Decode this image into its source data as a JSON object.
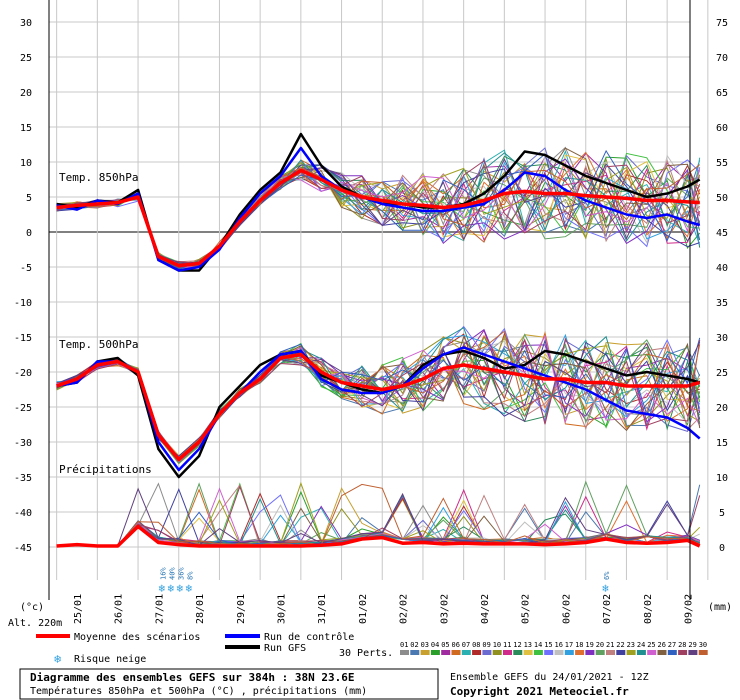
{
  "chart_data": {
    "type": "line",
    "title": "Diagramme des ensembles GEFS sur 384h : 38N 23.6E",
    "subtitle": "Températures 850hPa et 500hPa (°C) , précipitations (mm)",
    "left_axis": {
      "ticks": [
        30,
        25,
        20,
        15,
        10,
        5,
        0,
        -5,
        -10,
        -15,
        -20,
        -25,
        -30,
        -35,
        -40,
        -45
      ],
      "unit": "(°c)"
    },
    "right_axis": {
      "ticks": [
        75,
        70,
        65,
        60,
        55,
        50,
        45,
        40,
        35,
        30,
        25,
        20,
        15,
        10,
        5,
        0
      ],
      "unit": "(mm)"
    },
    "x_labels": [
      "25/01",
      "26/01",
      "27/01",
      "28/01",
      "29/01",
      "30/01",
      "31/01",
      "01/02",
      "02/02",
      "03/02",
      "04/02",
      "05/02",
      "06/02",
      "07/02",
      "08/02",
      "09/02"
    ],
    "panel_labels": {
      "t850": "Temp. 850hPa",
      "t500": "Temp. 500hPa",
      "precip": "Précipitations"
    },
    "altitude": "Alt. 220m",
    "legend": {
      "mean": "Moyenne des scénarios",
      "control": "Run de contrôle",
      "gfs": "Run GFS",
      "snow": "Risque neige",
      "perts": "30 Perts.",
      "pert_numbers": [
        "01",
        "02",
        "03",
        "04",
        "05",
        "06",
        "07",
        "08",
        "09",
        "10",
        "11",
        "12",
        "13",
        "14",
        "15",
        "16",
        "17",
        "18",
        "19",
        "20",
        "21",
        "22",
        "23",
        "24",
        "25",
        "26",
        "27",
        "28",
        "29",
        "30"
      ],
      "pert_colors": [
        "#8c8c8c",
        "#4a78b0",
        "#c8a030",
        "#2aa02a",
        "#a02aa0",
        "#d06a20",
        "#2ab0b0",
        "#b02a2a",
        "#6a6ad0",
        "#909020",
        "#d02a8a",
        "#2a8a5a",
        "#e0c040",
        "#40c040",
        "#7070ff",
        "#c0c0c0",
        "#30a0e0",
        "#e07030",
        "#8030c0",
        "#60a060",
        "#c08080",
        "#4040a0",
        "#a0a020",
        "#209090",
        "#d060d0",
        "#806040",
        "#3060c0",
        "#a04060",
        "#604080",
        "#c06030"
      ]
    },
    "snow_markers": [
      {
        "day": 2.1,
        "labels": [
          "16%",
          "40%",
          "36%",
          "8%"
        ]
      },
      {
        "day": 13.0,
        "labels": [
          "6%"
        ]
      }
    ],
    "run_info": "Ensemble GEFS du 24/01/2021 - 12Z",
    "copyright": "Copyright 2021 Meteociel.fr",
    "series": [
      {
        "name": "Moyenne des scénarios",
        "color": "#ff0000",
        "panel": "t850",
        "x": [
          -0.5,
          0,
          0.5,
          1,
          1.5,
          2,
          2.5,
          3,
          3.5,
          4,
          4.5,
          5,
          5.5,
          6,
          6.5,
          7,
          7.5,
          8,
          8.5,
          9,
          9.5,
          10,
          10.5,
          11,
          11.5,
          12,
          12.5,
          13,
          13.5,
          14,
          14.5,
          15,
          15.3
        ],
        "y": [
          3.5,
          3.8,
          4.0,
          4.2,
          5.0,
          -3.5,
          -4.8,
          -4.5,
          -2.0,
          1.5,
          4.5,
          7.0,
          8.8,
          7.5,
          6.0,
          5.0,
          4.5,
          4.0,
          3.8,
          3.5,
          3.8,
          4.5,
          5.5,
          5.8,
          5.5,
          5.5,
          5.2,
          5.0,
          4.8,
          4.5,
          4.5,
          4.3,
          4.2
        ]
      },
      {
        "name": "Run de contrôle",
        "color": "#0000ff",
        "panel": "t850",
        "x": [
          -0.5,
          0,
          0.5,
          1,
          1.5,
          2,
          2.5,
          3,
          3.5,
          4,
          4.5,
          5,
          5.5,
          6,
          6.5,
          7,
          7.5,
          8,
          8.5,
          9,
          9.5,
          10,
          10.5,
          11,
          11.5,
          12,
          12.5,
          13,
          13.5,
          14,
          14.5,
          15,
          15.3
        ],
        "y": [
          3.8,
          3.2,
          4.5,
          4.0,
          5.5,
          -4.0,
          -5.5,
          -5.0,
          -2.5,
          2.0,
          5.5,
          8.0,
          12.0,
          8.0,
          6.0,
          5.0,
          4.0,
          3.5,
          3.0,
          3.0,
          3.5,
          4.0,
          6.0,
          8.5,
          8.0,
          6.0,
          4.5,
          3.5,
          2.5,
          2.0,
          2.5,
          1.5,
          1.0
        ]
      },
      {
        "name": "Run GFS",
        "color": "#000000",
        "panel": "t850",
        "x": [
          -0.5,
          0,
          0.5,
          1,
          1.5,
          2,
          2.5,
          3,
          3.5,
          4,
          4.5,
          5,
          5.5,
          6,
          6.5,
          7,
          7.5,
          8,
          8.5,
          9,
          9.5,
          10,
          10.5,
          11,
          11.5,
          12,
          12.5,
          13,
          13.5,
          14,
          14.5,
          15,
          15.3
        ],
        "y": [
          4.0,
          3.5,
          4.5,
          4.2,
          6.0,
          -4.0,
          -5.5,
          -5.5,
          -2.0,
          2.5,
          6.0,
          8.5,
          14.0,
          9.5,
          6.5,
          5.0,
          4.0,
          4.0,
          3.5,
          3.5,
          4.0,
          5.5,
          8.0,
          11.5,
          11.0,
          9.5,
          8.0,
          7.0,
          6.0,
          5.0,
          5.5,
          6.5,
          7.5
        ]
      },
      {
        "name": "Moyenne des scénarios",
        "color": "#ff0000",
        "panel": "t500",
        "x": [
          -0.5,
          0,
          0.5,
          1,
          1.5,
          2,
          2.5,
          3,
          3.5,
          4,
          4.5,
          5,
          5.5,
          6,
          6.5,
          7,
          7.5,
          8,
          8.5,
          9,
          9.5,
          10,
          10.5,
          11,
          11.5,
          12,
          12.5,
          13,
          13.5,
          14,
          14.5,
          15,
          15.3
        ],
        "y": [
          -22.0,
          -21.0,
          -19.0,
          -18.5,
          -20.0,
          -29.0,
          -32.5,
          -30.0,
          -26.0,
          -23.0,
          -21.0,
          -18.0,
          -17.5,
          -20.0,
          -21.5,
          -22.0,
          -22.5,
          -22.0,
          -21.0,
          -19.5,
          -19.0,
          -19.5,
          -20.0,
          -20.5,
          -21.0,
          -21.0,
          -21.5,
          -21.5,
          -22.0,
          -22.0,
          -22.0,
          -22.0,
          -21.5
        ]
      },
      {
        "name": "Run de contrôle",
        "color": "#0000ff",
        "panel": "t500",
        "x": [
          -0.5,
          0,
          0.5,
          1,
          1.5,
          2,
          2.5,
          3,
          3.5,
          4,
          4.5,
          5,
          5.5,
          6,
          6.5,
          7,
          7.5,
          8,
          8.5,
          9,
          9.5,
          10,
          10.5,
          11,
          11.5,
          12,
          12.5,
          13,
          13.5,
          14,
          14.5,
          15,
          15.3
        ],
        "y": [
          -22.0,
          -21.5,
          -18.5,
          -18.5,
          -20.0,
          -30.0,
          -34.0,
          -31.0,
          -26.0,
          -23.0,
          -20.0,
          -17.5,
          -17.0,
          -21.0,
          -22.5,
          -23.0,
          -23.0,
          -22.0,
          -19.5,
          -17.5,
          -16.5,
          -17.5,
          -18.5,
          -19.5,
          -20.5,
          -21.5,
          -22.5,
          -24.0,
          -25.5,
          -26.0,
          -26.5,
          -28.0,
          -29.5
        ]
      },
      {
        "name": "Run GFS",
        "color": "#000000",
        "panel": "t500",
        "x": [
          -0.5,
          0,
          0.5,
          1,
          1.5,
          2,
          2.5,
          3,
          3.5,
          4,
          4.5,
          5,
          5.5,
          6,
          6.5,
          7,
          7.5,
          8,
          8.5,
          9,
          9.5,
          10,
          10.5,
          11,
          11.5,
          12,
          12.5,
          13,
          13.5,
          14,
          14.5,
          15,
          15.3
        ],
        "y": [
          -22.0,
          -21.5,
          -18.5,
          -18.0,
          -20.5,
          -31.0,
          -35.0,
          -32.0,
          -25.0,
          -22.0,
          -19.0,
          -17.5,
          -17.0,
          -20.5,
          -21.5,
          -22.5,
          -23.0,
          -22.0,
          -19.0,
          -17.5,
          -17.0,
          -18.0,
          -19.5,
          -19.0,
          -17.0,
          -17.5,
          -18.5,
          -19.5,
          -20.5,
          -20.0,
          -20.5,
          -21.0,
          -21.5
        ]
      },
      {
        "name": "Moyenne des scénarios",
        "color": "#ff0000",
        "panel": "precip",
        "x": [
          -0.5,
          0,
          0.5,
          1,
          1.5,
          2,
          2.5,
          3,
          3.5,
          4,
          4.5,
          5,
          5.5,
          6,
          6.5,
          7,
          7.5,
          8,
          8.5,
          9,
          9.5,
          10,
          10.5,
          11,
          11.5,
          12,
          12.5,
          13,
          13.5,
          14,
          14.5,
          15,
          15.3
        ],
        "y": [
          0,
          0.2,
          0,
          0,
          2.8,
          0.5,
          0.2,
          0,
          0,
          0,
          0,
          0,
          0,
          0.1,
          0.3,
          1.0,
          1.2,
          0.4,
          0.5,
          0.3,
          0.4,
          0.3,
          0.3,
          0.3,
          0.2,
          0.3,
          0.5,
          1.0,
          0.5,
          0.4,
          0.5,
          0.8,
          0
        ]
      }
    ]
  }
}
